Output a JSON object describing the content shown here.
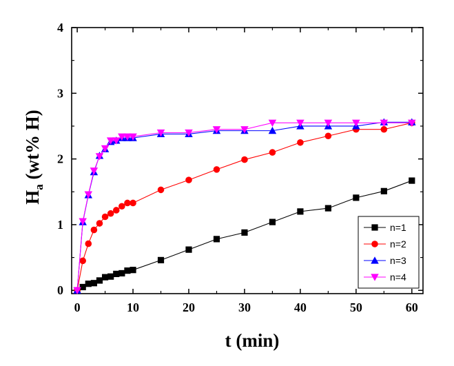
{
  "chart_data": {
    "type": "line",
    "title": "",
    "xlabel": "t (min)",
    "ylabel_main": "H",
    "ylabel_sub": "a",
    "ylabel_rest": " (wt% H)",
    "xlim": [
      -1,
      62
    ],
    "ylim": [
      -0.05,
      4.0
    ],
    "x_ticks": [
      0,
      10,
      20,
      30,
      40,
      50,
      60
    ],
    "y_ticks": [
      0,
      1,
      2,
      3,
      4
    ],
    "grid": false,
    "legend_position": "bottom-right",
    "series": [
      {
        "name": "n=1",
        "color": "#000000",
        "marker": "square",
        "x": [
          0,
          1,
          2,
          3,
          4,
          5,
          6,
          7,
          8,
          9,
          10,
          15,
          20,
          25,
          30,
          35,
          40,
          45,
          50,
          55,
          60
        ],
        "y": [
          0,
          0.05,
          0.1,
          0.11,
          0.15,
          0.2,
          0.21,
          0.25,
          0.26,
          0.3,
          0.31,
          0.46,
          0.62,
          0.78,
          0.88,
          1.04,
          1.2,
          1.25,
          1.41,
          1.51,
          1.67
        ]
      },
      {
        "name": "n=2",
        "color": "#ff0000",
        "marker": "circle",
        "x": [
          0,
          1,
          2,
          3,
          4,
          5,
          6,
          7,
          8,
          9,
          10,
          15,
          20,
          25,
          30,
          35,
          40,
          45,
          50,
          55,
          60
        ],
        "y": [
          0,
          0.45,
          0.71,
          0.92,
          1.02,
          1.12,
          1.17,
          1.22,
          1.28,
          1.33,
          1.33,
          1.53,
          1.68,
          1.84,
          1.99,
          2.1,
          2.25,
          2.35,
          2.45,
          2.45,
          2.55
        ]
      },
      {
        "name": "n=3",
        "color": "#0000ff",
        "marker": "triangle-up",
        "x": [
          0,
          1,
          2,
          3,
          4,
          5,
          6,
          7,
          8,
          9,
          10,
          15,
          20,
          25,
          30,
          35,
          40,
          45,
          50,
          55,
          60
        ],
        "y": [
          0,
          1.04,
          1.45,
          1.8,
          2.05,
          2.15,
          2.26,
          2.28,
          2.32,
          2.32,
          2.32,
          2.38,
          2.38,
          2.43,
          2.43,
          2.43,
          2.5,
          2.5,
          2.5,
          2.56,
          2.56
        ]
      },
      {
        "name": "n=4",
        "color": "#ff00ff",
        "marker": "triangle-down",
        "x": [
          0,
          1,
          2,
          3,
          4,
          5,
          6,
          7,
          8,
          9,
          10,
          15,
          20,
          25,
          30,
          35,
          40,
          45,
          50,
          55,
          60
        ],
        "y": [
          0,
          1.05,
          1.46,
          1.82,
          2.04,
          2.16,
          2.28,
          2.28,
          2.34,
          2.34,
          2.34,
          2.4,
          2.4,
          2.45,
          2.45,
          2.55,
          2.55,
          2.55,
          2.55,
          2.55,
          2.55
        ]
      }
    ]
  }
}
